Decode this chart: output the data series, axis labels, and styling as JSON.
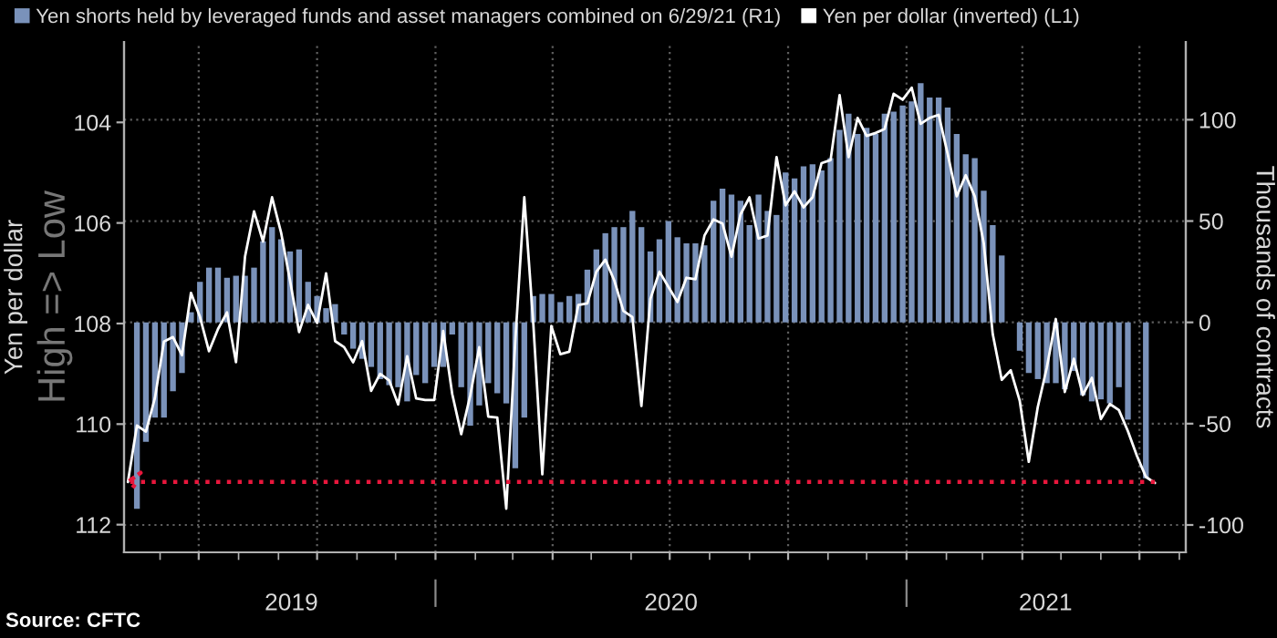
{
  "chart_data": {
    "type": "bar",
    "x": [
      "2019-05-14",
      "2019-05-21",
      "2019-05-28",
      "2019-06-04",
      "2019-06-11",
      "2019-06-18",
      "2019-06-25",
      "2019-07-02",
      "2019-07-09",
      "2019-07-16",
      "2019-07-23",
      "2019-07-30",
      "2019-08-06",
      "2019-08-13",
      "2019-08-20",
      "2019-08-27",
      "2019-09-03",
      "2019-09-10",
      "2019-09-17",
      "2019-09-24",
      "2019-10-01",
      "2019-10-08",
      "2019-10-15",
      "2019-10-22",
      "2019-10-29",
      "2019-11-05",
      "2019-11-12",
      "2019-11-19",
      "2019-11-26",
      "2019-12-03",
      "2019-12-10",
      "2019-12-17",
      "2019-12-24",
      "2019-12-31",
      "2020-01-07",
      "2020-01-14",
      "2020-01-21",
      "2020-01-28",
      "2020-02-04",
      "2020-02-11",
      "2020-02-18",
      "2020-02-25",
      "2020-03-03",
      "2020-03-10",
      "2020-03-17",
      "2020-03-24",
      "2020-03-31",
      "2020-04-07",
      "2020-04-14",
      "2020-04-21",
      "2020-04-28",
      "2020-05-05",
      "2020-05-12",
      "2020-05-19",
      "2020-05-26",
      "2020-06-02",
      "2020-06-09",
      "2020-06-16",
      "2020-06-23",
      "2020-06-30",
      "2020-07-07",
      "2020-07-14",
      "2020-07-21",
      "2020-07-28",
      "2020-08-04",
      "2020-08-11",
      "2020-08-18",
      "2020-08-25",
      "2020-09-01",
      "2020-09-08",
      "2020-09-15",
      "2020-09-22",
      "2020-09-29",
      "2020-10-06",
      "2020-10-13",
      "2020-10-20",
      "2020-10-27",
      "2020-11-03",
      "2020-11-10",
      "2020-11-17",
      "2020-11-24",
      "2020-12-01",
      "2020-12-08",
      "2020-12-15",
      "2020-12-22",
      "2020-12-29",
      "2021-01-05",
      "2021-01-12",
      "2021-01-19",
      "2021-01-26",
      "2021-02-02",
      "2021-02-09",
      "2021-02-16",
      "2021-02-23",
      "2021-03-02",
      "2021-03-09",
      "2021-03-16",
      "2021-03-23",
      "2021-03-30",
      "2021-04-06",
      "2021-04-13",
      "2021-04-20",
      "2021-04-27",
      "2021-05-04",
      "2021-05-11",
      "2021-05-18",
      "2021-05-25",
      "2021-06-01",
      "2021-06-08",
      "2021-06-15",
      "2021-06-22",
      "2021-06-29",
      "2021-07-06"
    ],
    "series": [
      {
        "name": "Yen shorts held by leveraged funds and asset managers combined on 6/29/21 (R1)",
        "axis": "y2",
        "color": "#7a92ba",
        "values": [
          -92,
          -59,
          -47,
          -47,
          -34,
          -25,
          5,
          20,
          27,
          27,
          22,
          23,
          23,
          27,
          40,
          47,
          41,
          35,
          36,
          20,
          13,
          7,
          9,
          -6,
          -13,
          -18,
          -22,
          -28,
          -31,
          -32,
          -39,
          -26,
          -30,
          -22,
          -22,
          -6,
          -32,
          -51,
          -41,
          -30,
          -35,
          -40,
          -72,
          -47,
          13,
          14,
          14,
          10,
          13,
          14,
          26,
          36,
          44,
          47,
          47,
          55,
          47,
          35,
          41,
          50,
          42,
          39,
          39,
          38,
          60,
          66,
          63,
          60,
          48,
          63,
          55,
          53,
          74,
          71,
          77,
          78,
          75,
          81,
          95,
          103,
          93,
          96,
          93,
          103,
          104,
          107,
          109,
          118,
          111,
          111,
          106,
          93,
          83,
          81,
          65,
          48,
          33,
          null,
          -14,
          -25,
          -28,
          -30,
          -30,
          -33,
          -24,
          -36,
          -39,
          -38,
          -40,
          -32,
          -48,
          null,
          -77
        ]
      },
      {
        "name": "Yen per dollar (inverted) (L1)",
        "type": "line",
        "color": "#ffffff",
        "x": [
          "2019-05-07",
          "2019-05-14",
          "2019-05-21",
          "2019-05-28",
          "2019-06-04",
          "2019-06-11",
          "2019-06-18",
          "2019-06-25",
          "2019-07-02",
          "2019-07-09",
          "2019-07-16",
          "2019-07-23",
          "2019-07-30",
          "2019-08-06",
          "2019-08-13",
          "2019-08-20",
          "2019-08-27",
          "2019-09-03",
          "2019-09-10",
          "2019-09-17",
          "2019-09-24",
          "2019-10-01",
          "2019-10-08",
          "2019-10-15",
          "2019-10-22",
          "2019-10-29",
          "2019-11-05",
          "2019-11-12",
          "2019-11-19",
          "2019-11-26",
          "2019-12-03",
          "2019-12-10",
          "2019-12-17",
          "2019-12-24",
          "2019-12-31",
          "2020-01-07",
          "2020-01-14",
          "2020-01-21",
          "2020-01-28",
          "2020-02-04",
          "2020-02-11",
          "2020-02-18",
          "2020-02-25",
          "2020-03-03",
          "2020-03-10",
          "2020-03-17",
          "2020-03-24",
          "2020-03-31",
          "2020-04-07",
          "2020-04-14",
          "2020-04-21",
          "2020-04-28",
          "2020-05-05",
          "2020-05-12",
          "2020-05-19",
          "2020-05-26",
          "2020-06-02",
          "2020-06-09",
          "2020-06-16",
          "2020-06-23",
          "2020-06-30",
          "2020-07-07",
          "2020-07-14",
          "2020-07-21",
          "2020-07-28",
          "2020-08-04",
          "2020-08-11",
          "2020-08-18",
          "2020-08-25",
          "2020-09-01",
          "2020-09-08",
          "2020-09-15",
          "2020-09-22",
          "2020-09-29",
          "2020-10-06",
          "2020-10-13",
          "2020-10-20",
          "2020-10-27",
          "2020-11-03",
          "2020-11-10",
          "2020-11-17",
          "2020-11-24",
          "2020-12-01",
          "2020-12-08",
          "2020-12-15",
          "2020-12-22",
          "2020-12-29",
          "2021-01-05",
          "2021-01-12",
          "2021-01-19",
          "2021-01-26",
          "2021-02-02",
          "2021-02-09",
          "2021-02-16",
          "2021-02-23",
          "2021-03-02",
          "2021-03-09",
          "2021-03-16",
          "2021-03-23",
          "2021-03-30",
          "2021-04-06",
          "2021-04-13",
          "2021-04-20",
          "2021-04-27",
          "2021-05-04",
          "2021-05-11",
          "2021-05-18",
          "2021-05-25",
          "2021-06-01",
          "2021-06-08",
          "2021-06-15",
          "2021-06-22",
          "2021-06-29",
          "2021-07-06",
          "2021-07-13"
        ],
        "values": [
          111.15,
          110.03,
          110.15,
          109.48,
          108.36,
          108.27,
          108.63,
          107.39,
          107.87,
          108.55,
          108.11,
          107.78,
          108.77,
          106.67,
          105.77,
          106.37,
          105.49,
          106.19,
          107.15,
          108.17,
          107.63,
          107.99,
          107.0,
          108.35,
          108.47,
          108.77,
          108.35,
          109.34,
          109.0,
          109.13,
          109.61,
          108.65,
          109.49,
          109.52,
          109.52,
          108.15,
          109.4,
          110.2,
          109.43,
          108.47,
          109.85,
          109.87,
          111.68,
          108.35,
          105.49,
          108.0,
          111.0,
          108.05,
          108.61,
          108.56,
          107.63,
          107.6,
          106.97,
          106.73,
          107.15,
          107.75,
          107.87,
          109.64,
          107.51,
          106.97,
          107.27,
          107.57,
          107.09,
          107.12,
          106.25,
          105.93,
          106.01,
          106.67,
          105.83,
          105.49,
          106.31,
          106.25,
          104.69,
          105.65,
          105.37,
          105.69,
          105.49,
          104.81,
          104.75,
          103.46,
          104.69,
          103.91,
          104.27,
          104.21,
          104.13,
          103.43,
          103.55,
          103.31,
          104.03,
          103.91,
          103.85,
          104.63,
          105.47,
          105.05,
          105.47,
          106.4,
          108.21,
          109.12,
          108.93,
          109.54,
          110.75,
          109.66,
          108.88,
          107.91,
          109.36,
          108.7,
          109.42,
          109.08,
          109.9,
          109.6,
          109.72,
          110.14,
          110.63,
          111.05,
          111.17
        ]
      }
    ],
    "ylabel": "Yen per dollar",
    "y2label": "Thousands of contracts",
    "ylim": [
      112.55,
      102.4
    ],
    "yticks": [
      104,
      106,
      108,
      110,
      112
    ],
    "y2lim": [
      -113.5,
      138.4
    ],
    "y2ticks": [
      -100,
      -50,
      0,
      50,
      100
    ],
    "xlim": [
      "2019-05-04",
      "2021-08-06"
    ],
    "xticks": [
      {
        "value": "2019-07-01",
        "label": null
      },
      {
        "value": "2019-09-11",
        "label": "2019"
      },
      {
        "value": "2019-10-01",
        "label": null
      },
      {
        "value": "2020-01-01",
        "label": null
      },
      {
        "value": "2020-04-01",
        "label": null
      },
      {
        "value": "2020-07-01",
        "label": null
      },
      {
        "value": "2020-07-02",
        "label": "2020"
      },
      {
        "value": "2020-10-01",
        "label": null
      },
      {
        "value": "2021-01-01",
        "label": null
      },
      {
        "value": "2021-04-01",
        "label": null
      },
      {
        "value": "2021-04-19",
        "label": "2021"
      },
      {
        "value": "2021-07-01",
        "label": null
      }
    ],
    "ref_lines": [
      {
        "axis": "y",
        "value": 111.15,
        "color": "#e8173c",
        "line_style": "dotted"
      }
    ],
    "annotations": [
      "High => Low",
      "Source: CFTC"
    ],
    "grid": true,
    "legend": "top left"
  }
}
